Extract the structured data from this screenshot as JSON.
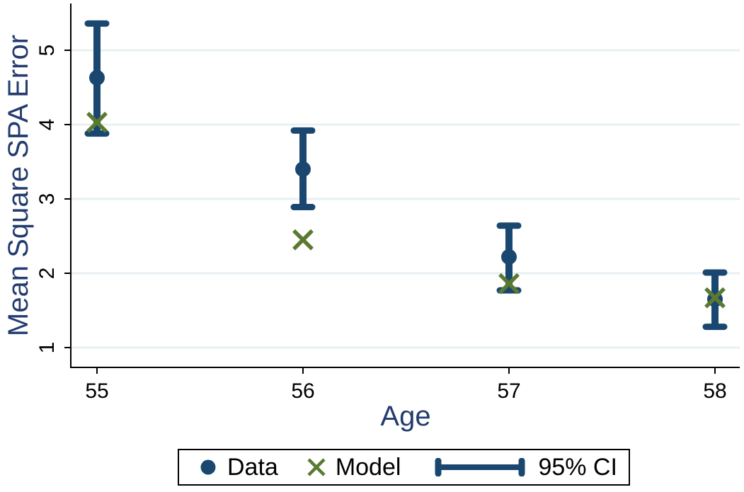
{
  "chart_data": {
    "type": "scatter",
    "title": "",
    "xlabel": "Age",
    "ylabel": "Mean Square SPA Error",
    "x": [
      55,
      56,
      57,
      58
    ],
    "xticks": [
      "55",
      "56",
      "57",
      "58"
    ],
    "yticks": [
      "1",
      "2",
      "3",
      "4",
      "5"
    ],
    "xlim": [
      54.87,
      58.12
    ],
    "ylim": [
      0.73,
      5.63
    ],
    "grid": "horizontal-only",
    "ytick_label_angle": "vertical",
    "series": [
      {
        "name": "Data",
        "marker": "circle",
        "color_key": "navy",
        "values": [
          4.63,
          3.4,
          2.22,
          1.65
        ]
      },
      {
        "name": "Model",
        "marker": "x",
        "color_key": "green",
        "values": [
          4.03,
          2.45,
          1.86,
          1.67
        ]
      },
      {
        "name": "95% CI",
        "marker": "errorbar",
        "color_key": "navy",
        "low": [
          3.88,
          2.89,
          1.77,
          1.28
        ],
        "high": [
          5.36,
          3.92,
          2.64,
          2.01
        ]
      }
    ],
    "legend": {
      "position": "bottom-center",
      "entries": [
        "Data",
        "Model",
        "95% CI"
      ]
    },
    "colors": {
      "navy": "#1a476f",
      "green": "#5a7a31",
      "grid": "#e8f0f3",
      "axis": "#000000",
      "axis_title": "#233c6e",
      "tick_label": "#000000",
      "background": "#ffffff"
    }
  }
}
